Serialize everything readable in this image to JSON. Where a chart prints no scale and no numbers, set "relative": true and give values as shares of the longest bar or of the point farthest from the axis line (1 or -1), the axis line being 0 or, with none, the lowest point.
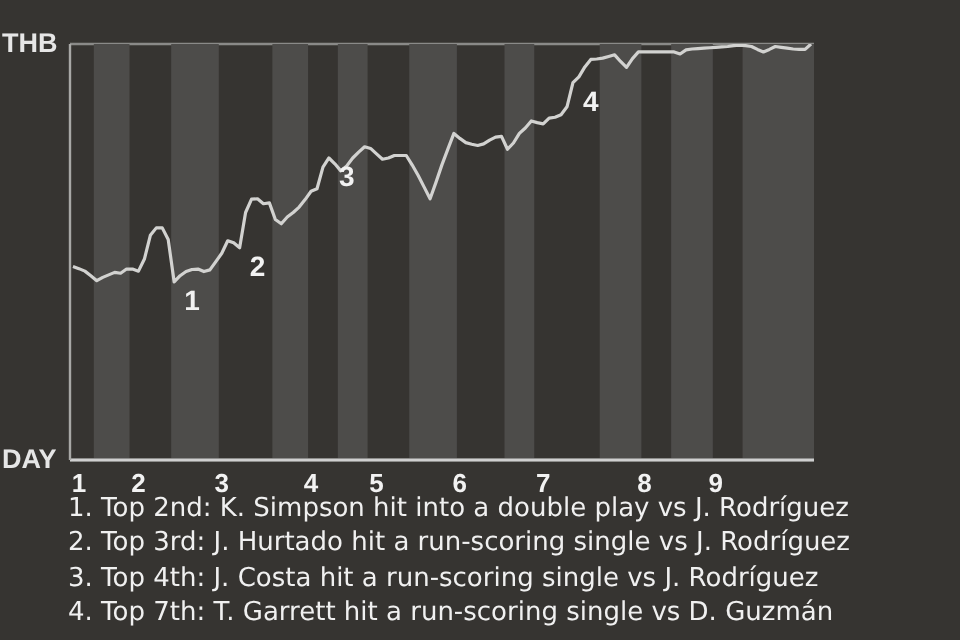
{
  "chart_data": {
    "type": "line",
    "relative": true,
    "categories": [
      null,
      "1",
      null,
      null,
      null,
      null,
      null,
      null,
      null,
      null,
      null,
      "2",
      null,
      null,
      null,
      null,
      null,
      null,
      null,
      null,
      null,
      null,
      null,
      null,
      null,
      "3",
      null,
      null,
      null,
      null,
      null,
      null,
      null,
      null,
      null,
      null,
      null,
      null,
      null,
      null,
      "4",
      null,
      null,
      null,
      null,
      null,
      null,
      null,
      null,
      null,
      null,
      "5",
      null,
      null,
      null,
      null,
      null,
      null,
      null,
      null,
      null,
      null,
      null,
      null,
      null,
      "6",
      null,
      null,
      null,
      null,
      null,
      null,
      null,
      null,
      null,
      null,
      null,
      null,
      null,
      "7",
      null,
      null,
      null,
      null,
      null,
      null,
      null,
      null,
      null,
      null,
      null,
      null,
      null,
      null,
      null,
      null,
      "8",
      null,
      null,
      null,
      null,
      null,
      null,
      null,
      null,
      null,
      null,
      null,
      "9",
      null,
      null,
      null,
      null,
      null,
      null,
      null,
      null,
      null,
      null,
      null,
      null,
      null,
      null,
      null,
      null
    ],
    "series": [
      {
        "color": "#d2d2d0",
        "values": [
          0.465,
          0.46,
          0.454,
          0.443,
          0.431,
          0.439,
          0.445,
          0.451,
          0.449,
          0.459,
          0.459,
          0.454,
          0.483,
          0.54,
          0.558,
          0.558,
          0.53,
          0.428,
          0.443,
          0.453,
          0.458,
          0.459,
          0.453,
          0.457,
          0.477,
          0.497,
          0.527,
          0.522,
          0.51,
          0.595,
          0.627,
          0.628,
          0.616,
          0.618,
          0.578,
          0.568,
          0.584,
          0.595,
          0.608,
          0.626,
          0.646,
          0.652,
          0.704,
          0.726,
          0.712,
          0.695,
          0.707,
          0.726,
          0.74,
          0.753,
          0.749,
          0.736,
          0.723,
          0.726,
          0.732,
          0.732,
          0.732,
          0.709,
          0.684,
          0.656,
          0.628,
          0.668,
          0.71,
          0.748,
          0.785,
          0.773,
          0.763,
          0.759,
          0.756,
          0.76,
          0.769,
          0.776,
          0.778,
          0.747,
          0.762,
          0.785,
          0.798,
          0.815,
          0.811,
          0.808,
          0.822,
          0.824,
          0.83,
          0.849,
          0.907,
          0.921,
          0.945,
          0.963,
          0.964,
          0.966,
          0.97,
          0.974,
          0.958,
          0.944,
          0.965,
          0.981,
          0.981,
          0.981,
          0.981,
          0.981,
          0.981,
          0.981,
          0.976,
          0.986,
          0.988,
          0.989,
          0.99,
          0.991,
          0.992,
          0.993,
          0.994,
          0.996,
          0.997,
          0.996,
          0.994,
          0.987,
          0.981,
          0.987,
          0.994,
          0.992,
          0.99,
          0.988,
          0.987,
          0.987,
          1
        ]
      }
    ],
    "grid": "y",
    "line_style": "solid",
    "marker": "none",
    "legend": false,
    "annotations": [
      "THB",
      "DAY",
      "1",
      "2",
      "3",
      "4",
      "1. Top 2nd: K. Simpson hit into a double play vs J. Rodríguez",
      "2. Top 3rd: J. Hurtado hit a run-scoring single vs J. Rodríguez",
      "3. Top 4th: J. Costa hit a run-scoring single vs J. Rodríguez",
      "4. Top 7th: T. Garrett hit a run-scoring single vs D. Guzmán"
    ]
  }
}
